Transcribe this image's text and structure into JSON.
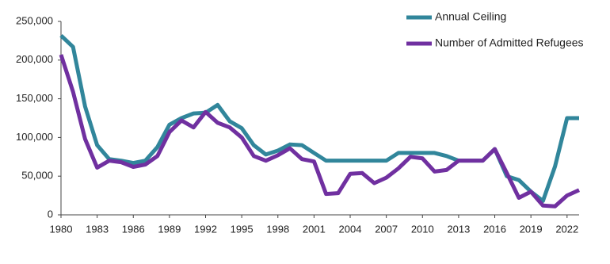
{
  "chart_data": {
    "type": "line",
    "x": [
      1980,
      1981,
      1982,
      1983,
      1984,
      1985,
      1986,
      1987,
      1988,
      1989,
      1990,
      1991,
      1992,
      1993,
      1994,
      1995,
      1996,
      1997,
      1998,
      1999,
      2000,
      2001,
      2002,
      2003,
      2004,
      2005,
      2006,
      2007,
      2008,
      2009,
      2010,
      2011,
      2012,
      2013,
      2014,
      2015,
      2016,
      2017,
      2018,
      2019,
      2020,
      2021,
      2022,
      2023
    ],
    "series": [
      {
        "name": "Annual Ceiling",
        "color": "#31869b",
        "values": [
          231700,
          217000,
          140000,
          90000,
          72000,
          70000,
          67000,
          70000,
          87500,
          116500,
          125000,
          131000,
          132000,
          142000,
          121000,
          112000,
          90000,
          78000,
          83000,
          91000,
          90000,
          80000,
          70000,
          70000,
          70000,
          70000,
          70000,
          70000,
          80000,
          80000,
          80000,
          80000,
          76000,
          70000,
          70000,
          70000,
          85000,
          50000,
          45000,
          30000,
          18000,
          62500,
          125000,
          125000
        ]
      },
      {
        "name": "Number of Admitted Refugees",
        "color": "#7030a0",
        "values": [
          207000,
          159000,
          98000,
          61000,
          70000,
          68000,
          62000,
          65000,
          76000,
          107000,
          122000,
          113000,
          133000,
          119000,
          113000,
          100000,
          76000,
          70000,
          77000,
          86000,
          72000,
          69000,
          27000,
          28000,
          53000,
          54000,
          41000,
          48000,
          60000,
          75000,
          73000,
          56000,
          58000,
          70000,
          70000,
          70000,
          85000,
          54000,
          22000,
          30000,
          12000,
          11000,
          25000,
          32000
        ]
      }
    ],
    "xlim": [
      1980,
      2023
    ],
    "xticks": [
      1980,
      1983,
      1986,
      1989,
      1992,
      1995,
      1998,
      2001,
      2004,
      2007,
      2010,
      2013,
      2016,
      2019,
      2022
    ],
    "ylim": [
      0,
      250000
    ],
    "yticks": [
      0,
      {
        "value": 50000,
        "label": "50,000"
      },
      {
        "value": 100000,
        "label": "100,000"
      },
      {
        "value": 150000,
        "label": "150,000"
      },
      {
        "value": 200000,
        "label": "200,000"
      },
      {
        "value": 250000,
        "label": "250,000"
      }
    ],
    "legend": "top-right"
  }
}
